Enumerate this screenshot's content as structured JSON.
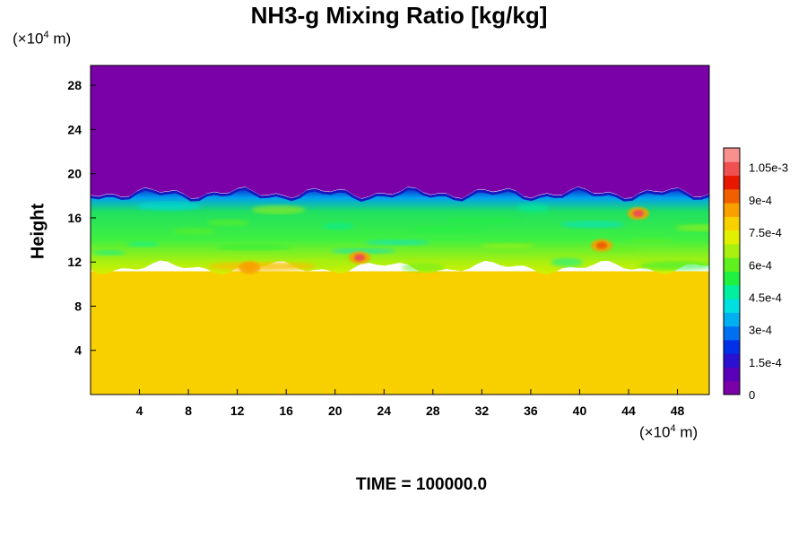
{
  "chart_data": {
    "type": "heatmap",
    "title": "NH3-g Mixing Ratio [kg/kg]",
    "xlabel": "",
    "ylabel": "Height",
    "x_unit_base": "(×10",
    "x_unit_exp": "4",
    "x_unit_tail": " m)",
    "y_unit_base": "(×10",
    "y_unit_exp": "4",
    "y_unit_tail": " m)",
    "xlim": [
      0,
      50.6
    ],
    "ylim": [
      0,
      29.8
    ],
    "x_ticks": [
      "4",
      "8",
      "12",
      "16",
      "20",
      "24",
      "28",
      "32",
      "36",
      "40",
      "44",
      "48"
    ],
    "y_ticks": [
      "4",
      "8",
      "12",
      "16",
      "20",
      "24",
      "28"
    ],
    "colorbar": {
      "ticks": [
        "0",
        "1.5e-4",
        "3e-4",
        "4.5e-4",
        "6e-4",
        "7.5e-4",
        "9e-4",
        "1.05e-3"
      ],
      "tick_values": [
        0,
        0.00015,
        0.0003,
        0.00045,
        0.0006,
        0.00075,
        0.0009,
        0.00105
      ],
      "range": [
        0,
        0.00114
      ],
      "colors": [
        "#7a00a8",
        "#5a00b8",
        "#2a10d0",
        "#0030e8",
        "#0070f0",
        "#00b0f0",
        "#00e0e0",
        "#00f0a0",
        "#20f040",
        "#60f020",
        "#a8f010",
        "#e0f000",
        "#f8d000",
        "#f8a000",
        "#f06000",
        "#e81800",
        "#f05050",
        "#f89090"
      ]
    },
    "regions": [
      {
        "name": "upper",
        "y_range": [
          18.2,
          29.8
        ],
        "value": 0.0
      },
      {
        "name": "turbulent-layer",
        "y_range": [
          11.5,
          18.2
        ],
        "value_range": [
          0.0002,
          0.0011
        ]
      },
      {
        "name": "lower",
        "y_range": [
          0,
          11.0
        ],
        "value": 0.00078
      }
    ],
    "hotspots": [
      {
        "x": 22.0,
        "y": 12.4,
        "value": 0.00105
      },
      {
        "x": 44.8,
        "y": 16.4,
        "value": 0.0011
      },
      {
        "x": 13.0,
        "y": 11.5,
        "value": 0.00088
      },
      {
        "x": 41.8,
        "y": 13.5,
        "value": 0.00095
      }
    ],
    "time_label": "TIME = 100000.0"
  }
}
